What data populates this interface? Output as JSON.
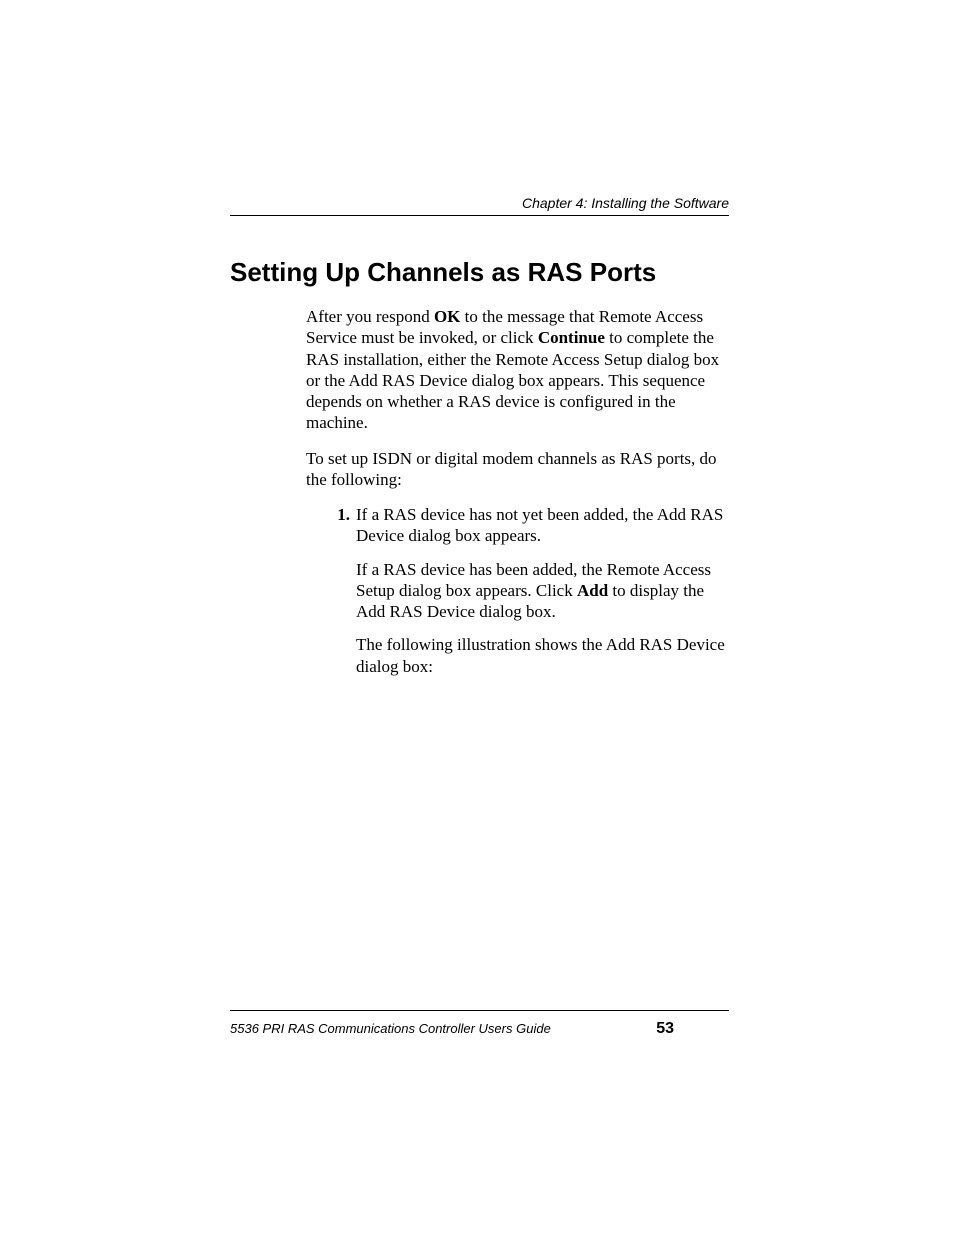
{
  "header": {
    "running_title": "Chapter 4: Installing the Software"
  },
  "section": {
    "title": "Setting Up Channels as RAS Ports"
  },
  "body": {
    "p1": {
      "t1": "After you respond ",
      "b1": "OK",
      "t2": " to the message that Remote Access Service must be invoked, or click ",
      "b2": "Continue",
      "t3": " to complete the RAS installation, either the Remote Access Setup dialog box or the Add RAS Device dialog box appears. This sequence depends on whether a RAS device is configured in the machine."
    },
    "p2": "To set up ISDN or digital modem channels as RAS ports, do the following:"
  },
  "list": {
    "item1": {
      "num": "1.",
      "p1": "If a RAS device has not yet been added, the Add RAS Device dialog box appears.",
      "p2": {
        "t1": "If a RAS device has been added, the Remote Access Setup dialog box appears. Click ",
        "b1": "Add",
        "t2": " to display the Add RAS Device dialog box."
      },
      "p3": "The following illustration shows the Add RAS Device dialog box:"
    }
  },
  "footer": {
    "doc_title": "5536 PRI RAS Communications Controller Users Guide",
    "page_number": "53"
  }
}
